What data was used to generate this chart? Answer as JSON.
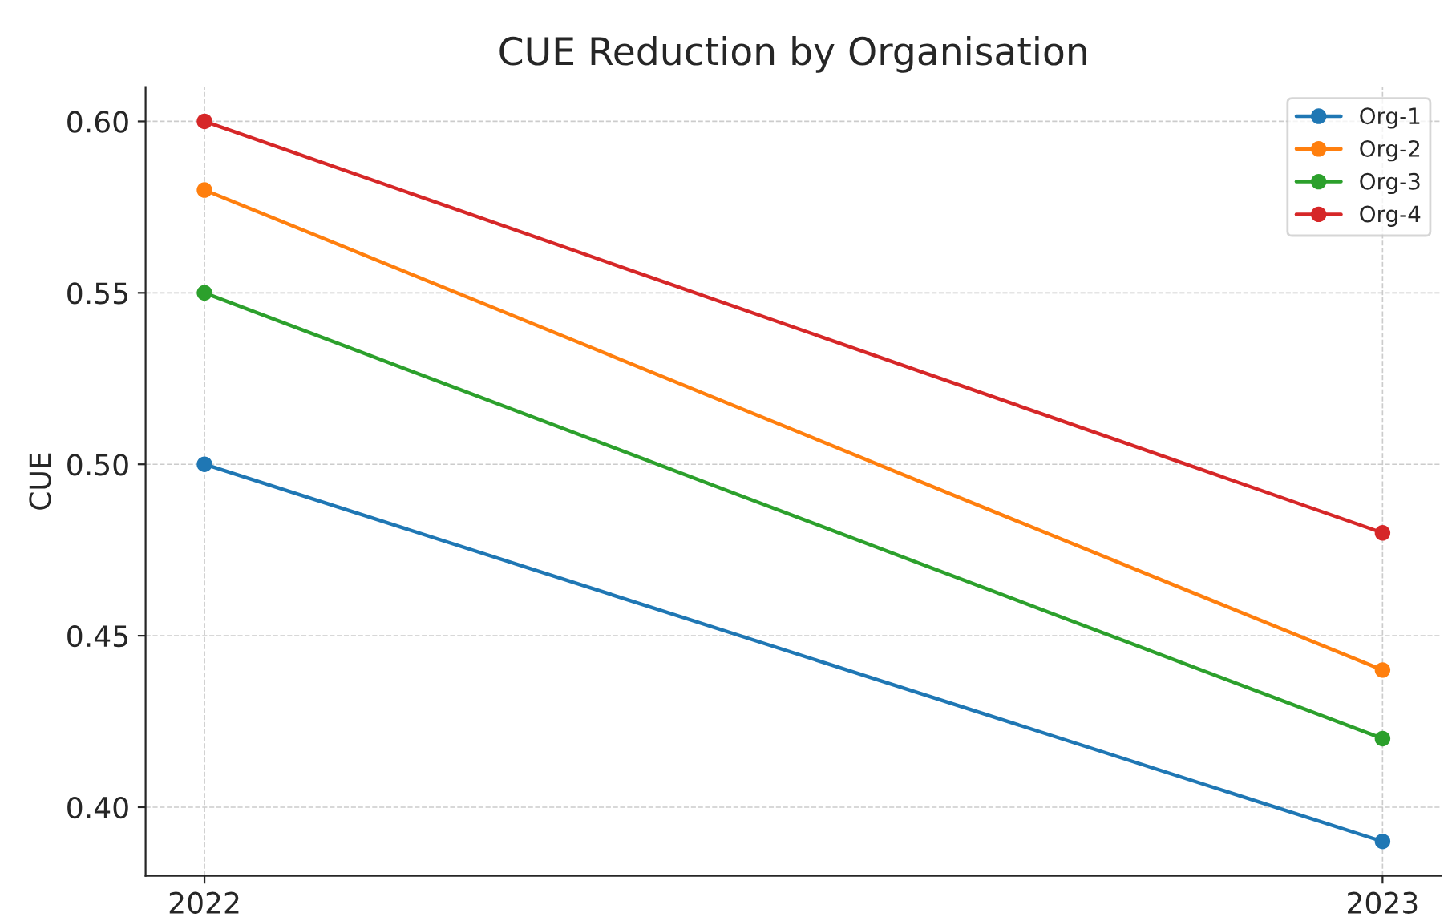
{
  "chart_data": {
    "type": "line",
    "title": "CUE Reduction by Organisation",
    "ylabel": "CUE",
    "x": [
      2022,
      2023
    ],
    "series": [
      {
        "name": "Org-1",
        "color": "#1f77b4",
        "values": [
          0.5,
          0.39
        ]
      },
      {
        "name": "Org-2",
        "color": "#ff7f0e",
        "values": [
          0.58,
          0.44
        ]
      },
      {
        "name": "Org-3",
        "color": "#2ca02c",
        "values": [
          0.55,
          0.42
        ]
      },
      {
        "name": "Org-4",
        "color": "#d62728",
        "values": [
          0.6,
          0.48
        ]
      }
    ],
    "xlim": [
      2021.95,
      2023.05
    ],
    "xticks": [
      2022,
      2023
    ],
    "ylim": [
      0.38,
      0.61
    ],
    "yticks": [
      {
        "value": 0.4,
        "label": "0.40"
      },
      {
        "value": 0.45,
        "label": "0.45"
      },
      {
        "value": 0.5,
        "label": "0.50"
      },
      {
        "value": 0.55,
        "label": "0.55"
      },
      {
        "value": 0.6,
        "label": "0.60"
      }
    ],
    "grid": true,
    "legend": "top right",
    "marker": "circle",
    "line_style": "solid"
  }
}
